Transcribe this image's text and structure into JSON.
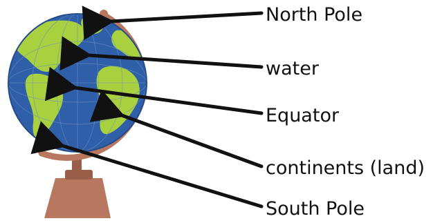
{
  "labels": {
    "north_pole": "North Pole",
    "water": "water",
    "equator": "Equator",
    "continents": "continents (land)",
    "south_pole": "South Pole"
  },
  "colors": {
    "ocean": "#2f5fa9",
    "ocean_dark": "#244c8a",
    "land": "#a9d13f",
    "land_dark": "#8ebd2f",
    "stand": "#b8775f",
    "stand_dark": "#9a5f49",
    "arrow": "#111111"
  }
}
